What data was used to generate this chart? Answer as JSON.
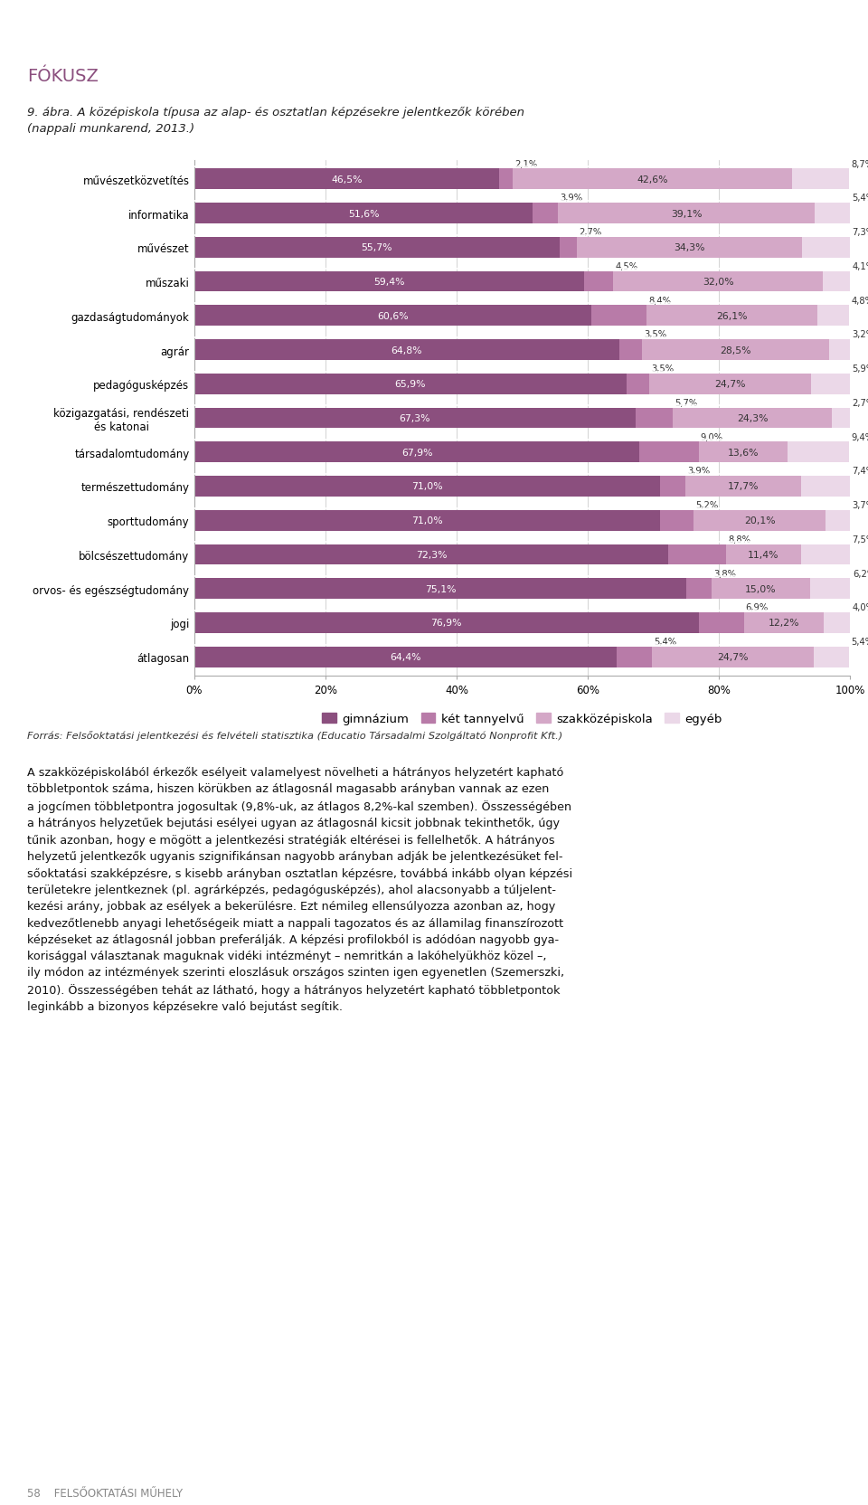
{
  "categories": [
    "művészetközvetítés",
    "informatika",
    "művészet",
    "műszaki",
    "gazdaságtudományok",
    "agrár",
    "pedagógusképzés",
    "közigazgatási, rendészeti\nés katonai",
    "társadalomtudomány",
    "természettudomány",
    "sporttudomány",
    "bölcsészettudomány",
    "orvos- és egészségtudomány",
    "jogi",
    "átlagosan"
  ],
  "gimnázium": [
    46.5,
    51.6,
    55.7,
    59.4,
    60.6,
    64.8,
    65.9,
    67.3,
    67.9,
    71.0,
    71.0,
    72.3,
    75.1,
    76.9,
    64.4
  ],
  "két_tannyelvű": [
    2.1,
    3.9,
    2.7,
    4.5,
    8.4,
    3.5,
    3.5,
    5.7,
    9.0,
    3.9,
    5.2,
    8.8,
    3.8,
    6.9,
    5.4
  ],
  "szakközépiskola": [
    42.6,
    39.1,
    34.3,
    32.0,
    26.1,
    28.5,
    24.7,
    24.3,
    13.6,
    17.7,
    20.1,
    11.4,
    15.0,
    12.2,
    24.7
  ],
  "egyéb": [
    8.7,
    5.4,
    7.3,
    4.1,
    4.8,
    3.2,
    5.9,
    2.7,
    9.4,
    7.4,
    3.7,
    7.5,
    6.2,
    4.0,
    5.4
  ],
  "color_gimnázium": "#8B4F7E",
  "color_két_tannyelvű": "#B87BA8",
  "color_szakközépiskola": "#D4A8C7",
  "color_egyéb": "#EBD8E8",
  "title_line1": "9. ábra. A középiskola típusa az alap- és osztatlan képzésekre jelentkezők körében",
  "title_line2": "(nappali munkarend, 2013.)",
  "legend_labels": [
    "gimnázium",
    "két tannyelvű",
    "szakközépiskola",
    "egyéb"
  ],
  "source": "Forrás: Felsőoktatási jelentkezési és felvételi statisztika (Educatio Társadalmi Szolgáltató Nonprofit Kft.)",
  "header_color": "#8B4F7E",
  "header_text": "FÓKUSZ",
  "body_text_lines": [
    "A szakközépiskolából érkezők esélyeit valamelyest növelheti a hátrányos helyzetért kapható",
    "többletpontok száma, hiszen körükben az átlagosnál magasabb arányban vannak az ezen",
    "a jogcímen többletpontra jogosultak (9,8%-uk, az átlagos 8,2%-kal szemben). Összességében",
    "a hátrányos helyzetűek bejutási esélyei ugyan az átlagosnál kicsit jobbnak tekinthetők, úgy",
    "tűnik azonban, hogy e mögött a jelentkezési stratégiák eltérései is fellelhetők. A hátrányos",
    "helyzetű jelentkezők ugyanis szignifikánsan nagyobb arányban adják be jelentkezésüket fel-",
    "sőoktatási szakképzésre, s kisebb arányban osztatlan képzésre, továbbá inkább olyan képzési",
    "területekre jelentkeznek (pl. agrárképzés, pedagógusképzés), ahol alacsonyabb a túljelent-",
    "kezési arány, jobbak az esélyek a bekerülésre. Ezt némileg ellensúlyozza azonban az, hogy",
    "kedvezőtlenebb anyagi lehetőségeik miatt a nappali tagozatos és az államilag finanszírozott",
    "képzéseket az átlagosnál jobban preferálják. A képzési profilokból is adódóan nagyobb gya-",
    "korisággal választanak maguknak vidéki intézményt – nemritkán a lakóhelyükhöz közel –,",
    "ily módon az intézmények szerinti eloszlásuk országos szinten igen egyenetlen (Szemerszki,",
    "2010). Összességében tehát az látható, hogy a hátrányos helyzetért kapható többletpontok",
    "leginkább a bizonyos képzésekre való bejutást segítik."
  ],
  "footer_text": "58    FELSŐOKTATÁSI MŰHELY"
}
